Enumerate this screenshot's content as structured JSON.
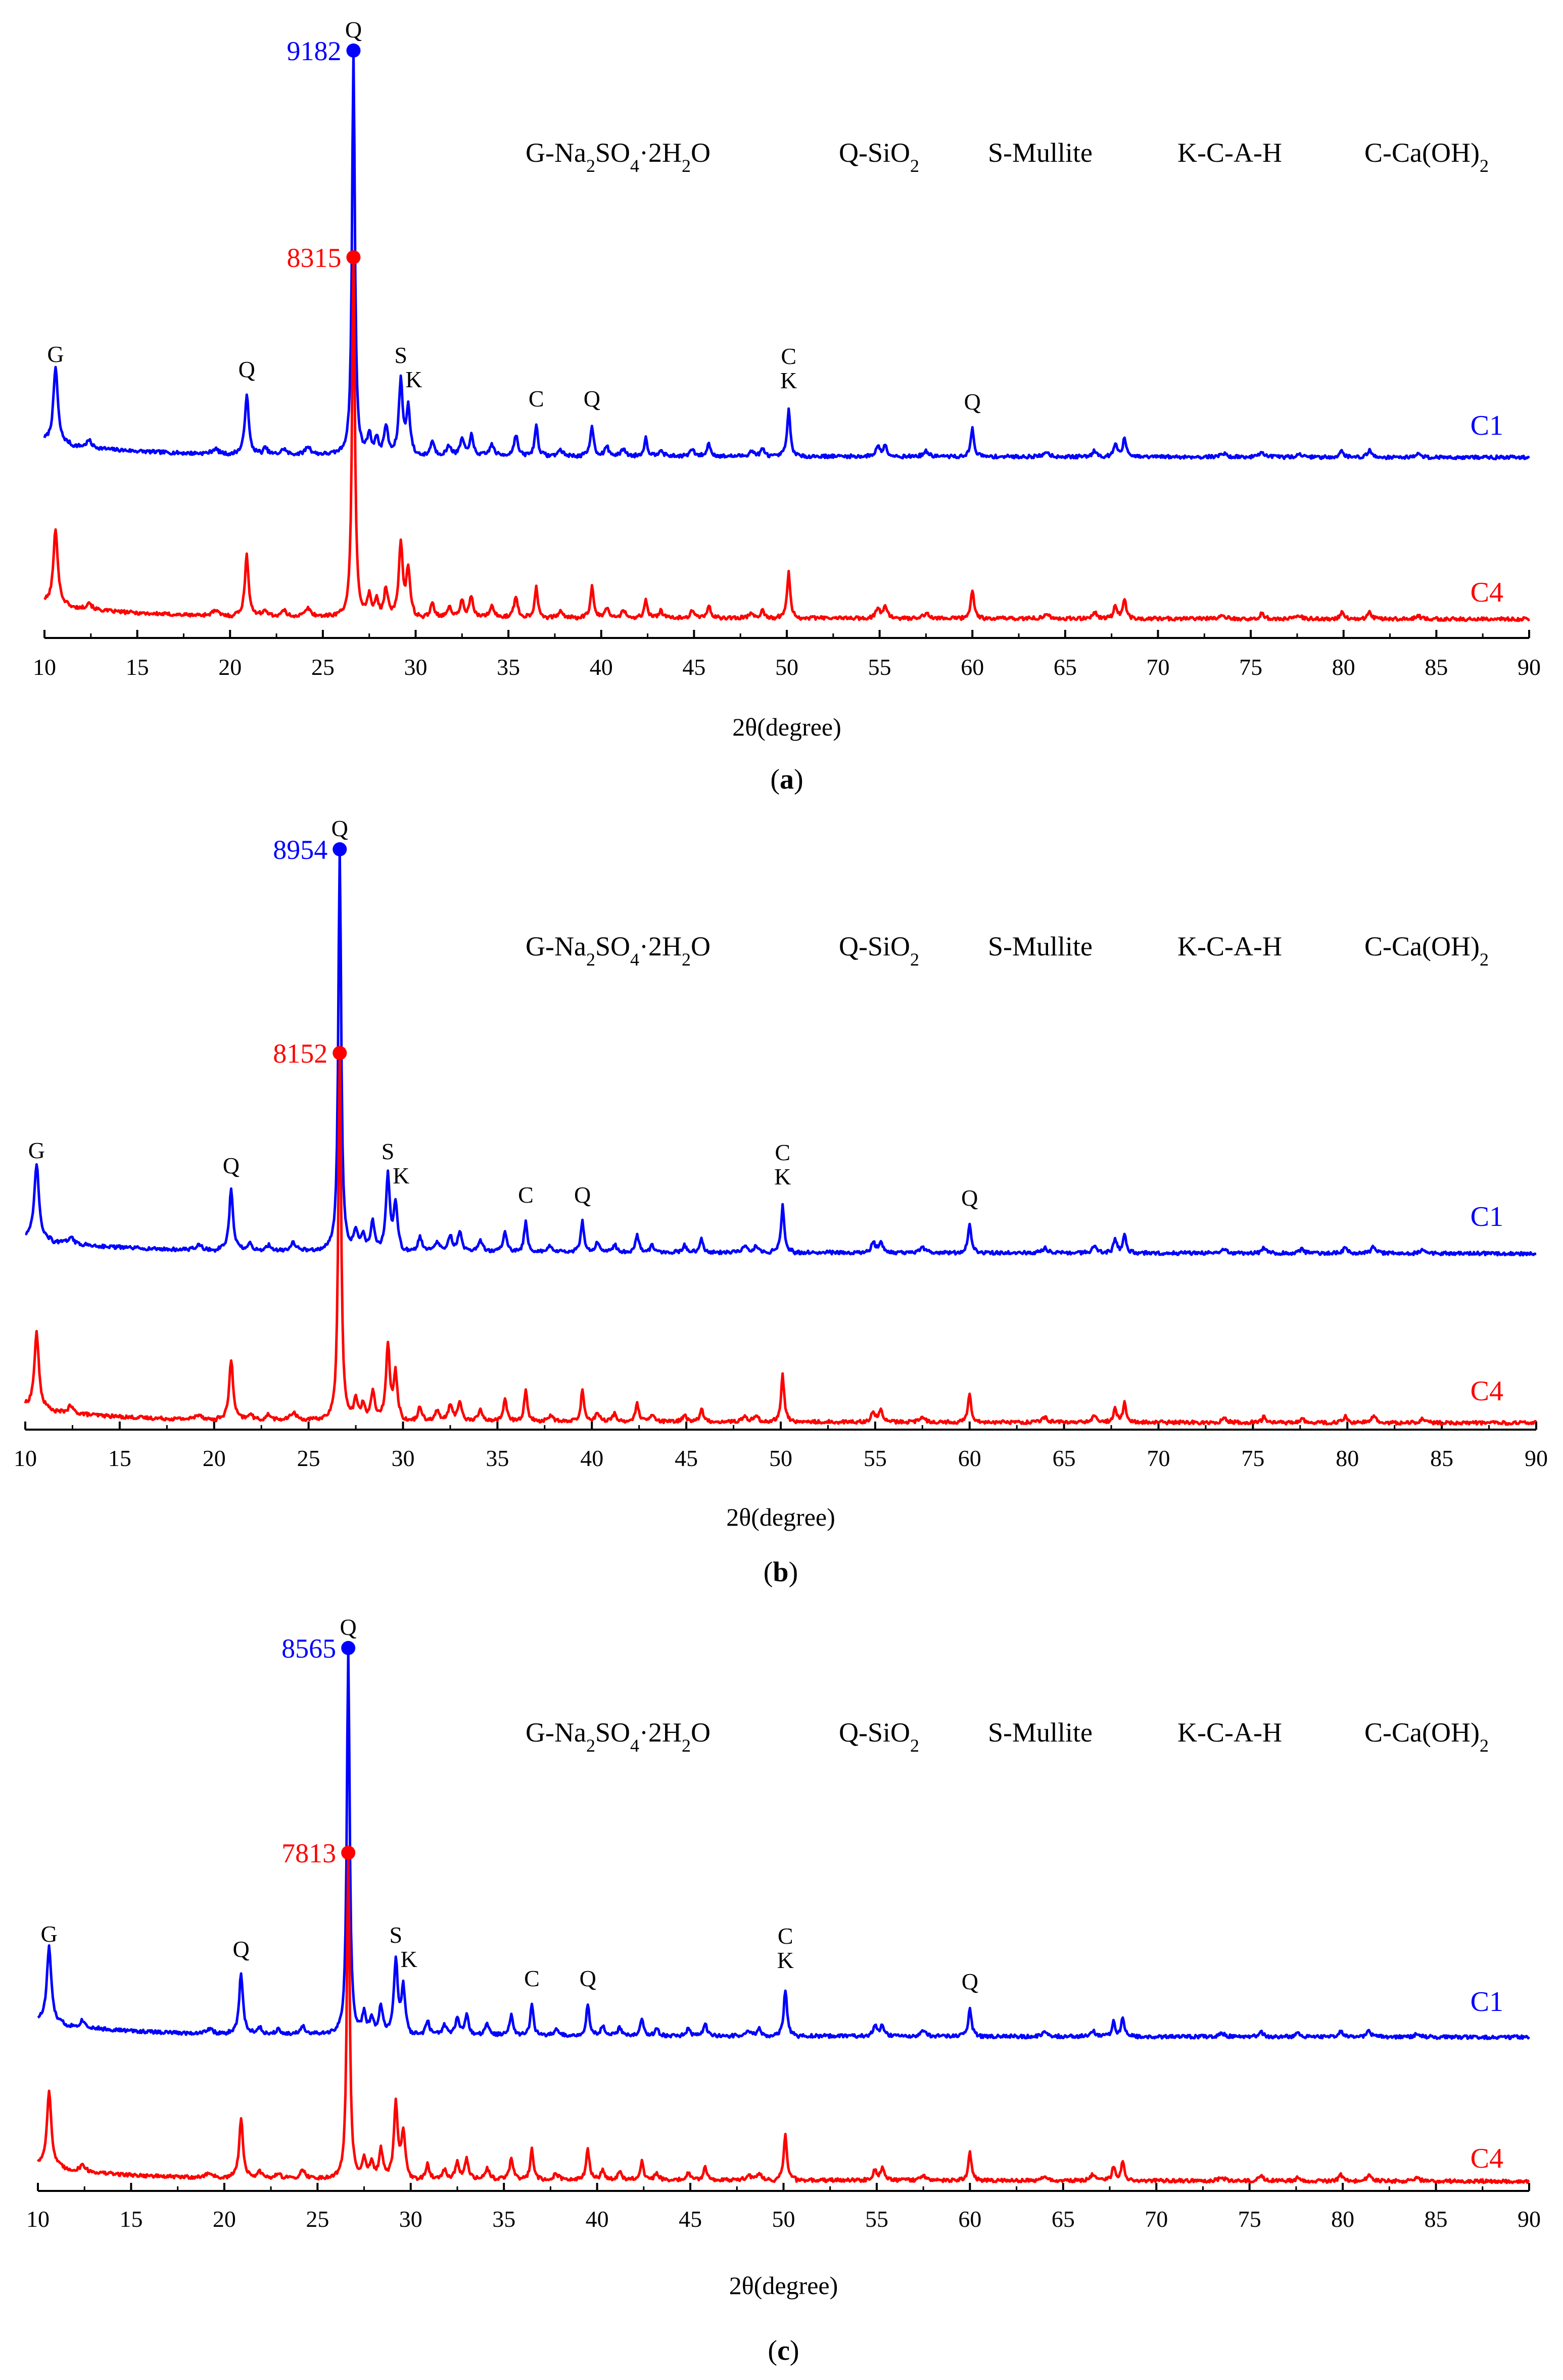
{
  "chart_data": [
    {
      "type": "line",
      "panel_label": "(a)",
      "xlabel": "2θ(degree)",
      "ylabel": "",
      "xlim": [
        10,
        90
      ],
      "x_ticks": [
        10,
        15,
        20,
        25,
        30,
        35,
        40,
        45,
        50,
        55,
        60,
        65,
        70,
        75,
        80,
        85,
        90
      ],
      "legend_items": [
        {
          "prefix": "G-Na",
          "s1": "2",
          "mid": "SO",
          "s2": "4",
          "dot": "·2H",
          "s3": "2",
          "end": "O"
        },
        {
          "prefix": "Q-SiO",
          "s1": "2"
        },
        {
          "prefix": "S-Mullite"
        },
        {
          "prefix": "K-C-A-H"
        },
        {
          "prefix": "C-Ca(OH)",
          "s1": "2"
        }
      ],
      "peak_labels": [
        {
          "x": 10.6,
          "text": "G"
        },
        {
          "x": 20.9,
          "text": "Q"
        },
        {
          "x": 29.2,
          "text": "S"
        },
        {
          "x": 29.9,
          "text": "K"
        },
        {
          "x": 36.5,
          "text": "C"
        },
        {
          "x": 39.5,
          "text": "Q"
        },
        {
          "x": 50.1,
          "text": "C"
        },
        {
          "x": 50.1,
          "text": "K"
        },
        {
          "x": 60.0,
          "text": "Q"
        }
      ],
      "max_peak_label": "Q",
      "series": [
        {
          "name": "C1",
          "color": "#0000ff",
          "max_x": 26.65,
          "max_value": 9182,
          "max_label": "9182"
        },
        {
          "name": "C4",
          "color": "#ff0000",
          "max_x": 26.65,
          "max_value": 8315,
          "max_label": "8315"
        }
      ]
    },
    {
      "type": "line",
      "panel_label": "(b)",
      "xlabel": "2θ(degree)",
      "ylabel": "",
      "xlim": [
        10,
        90
      ],
      "x_ticks": [
        10,
        15,
        20,
        25,
        30,
        35,
        40,
        45,
        50,
        55,
        60,
        65,
        70,
        75,
        80,
        85,
        90
      ],
      "legend_items": [
        {
          "prefix": "G-Na",
          "s1": "2",
          "mid": "SO",
          "s2": "4",
          "dot": "·2H",
          "s3": "2",
          "end": "O"
        },
        {
          "prefix": "Q-SiO",
          "s1": "2"
        },
        {
          "prefix": "S-Mullite"
        },
        {
          "prefix": "K-C-A-H"
        },
        {
          "prefix": "C-Ca(OH)",
          "s1": "2"
        }
      ],
      "peak_labels": [
        {
          "x": 10.6,
          "text": "G"
        },
        {
          "x": 20.9,
          "text": "Q"
        },
        {
          "x": 29.2,
          "text": "S"
        },
        {
          "x": 29.9,
          "text": "K"
        },
        {
          "x": 36.5,
          "text": "C"
        },
        {
          "x": 39.5,
          "text": "Q"
        },
        {
          "x": 50.1,
          "text": "C"
        },
        {
          "x": 50.1,
          "text": "K"
        },
        {
          "x": 60.0,
          "text": "Q"
        }
      ],
      "max_peak_label": "Q",
      "series": [
        {
          "name": "C1",
          "color": "#0000ff",
          "max_x": 26.65,
          "max_value": 8954,
          "max_label": "8954"
        },
        {
          "name": "C4",
          "color": "#ff0000",
          "max_x": 26.65,
          "max_value": 8152,
          "max_label": "8152"
        }
      ]
    },
    {
      "type": "line",
      "panel_label": "(c)",
      "xlabel": "2θ(degree)",
      "ylabel": "",
      "xlim": [
        10,
        90
      ],
      "x_ticks": [
        10,
        15,
        20,
        25,
        30,
        35,
        40,
        45,
        50,
        55,
        60,
        65,
        70,
        75,
        80,
        85,
        90
      ],
      "legend_items": [
        {
          "prefix": "G-Na",
          "s1": "2",
          "mid": "SO",
          "s2": "4",
          "dot": "·2H",
          "s3": "2",
          "end": "O"
        },
        {
          "prefix": "Q-SiO",
          "s1": "2"
        },
        {
          "prefix": "S-Mullite"
        },
        {
          "prefix": "K-C-A-H"
        },
        {
          "prefix": "C-Ca(OH)",
          "s1": "2"
        }
      ],
      "peak_labels": [
        {
          "x": 10.6,
          "text": "G"
        },
        {
          "x": 20.9,
          "text": "Q"
        },
        {
          "x": 29.2,
          "text": "S"
        },
        {
          "x": 29.9,
          "text": "K"
        },
        {
          "x": 36.5,
          "text": "C"
        },
        {
          "x": 39.5,
          "text": "Q"
        },
        {
          "x": 50.1,
          "text": "C"
        },
        {
          "x": 50.1,
          "text": "K"
        },
        {
          "x": 60.0,
          "text": "Q"
        }
      ],
      "max_peak_label": "Q",
      "series": [
        {
          "name": "C1",
          "color": "#0000ff",
          "max_x": 26.65,
          "max_value": 8565,
          "max_label": "8565"
        },
        {
          "name": "C4",
          "color": "#ff0000",
          "max_x": 26.65,
          "max_value": 7813,
          "max_label": "7813"
        }
      ]
    }
  ]
}
